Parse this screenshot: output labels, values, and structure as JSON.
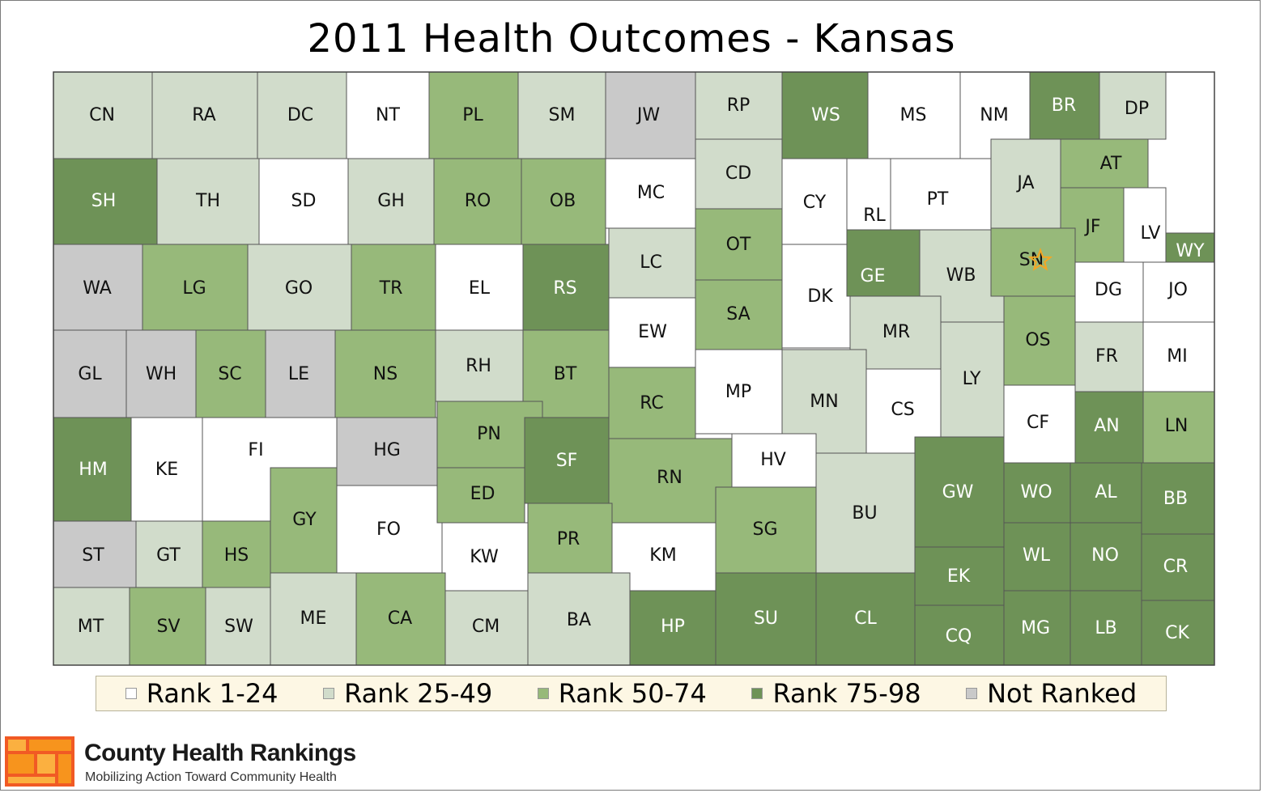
{
  "title": "2011 Health Outcomes - Kansas",
  "legend": [
    {
      "label": "Rank 1-24",
      "color": "#ffffff"
    },
    {
      "label": "Rank 25-49",
      "color": "#d1dccb"
    },
    {
      "label": "Rank 50-74",
      "color": "#97b97a"
    },
    {
      "label": "Rank 75-98",
      "color": "#6e9257"
    },
    {
      "label": "Not Ranked",
      "color": "#c9c9c9"
    }
  ],
  "rank_colors": {
    "r1": "#ffffff",
    "r2": "#d1dccb",
    "r3": "#97b97a",
    "r4": "#6e9257",
    "nr": "#c9c9c9"
  },
  "counties": [
    {
      "abbr": "CN",
      "rank_group": "r2"
    },
    {
      "abbr": "RA",
      "rank_group": "r2"
    },
    {
      "abbr": "DC",
      "rank_group": "r2"
    },
    {
      "abbr": "NT",
      "rank_group": "r1"
    },
    {
      "abbr": "PL",
      "rank_group": "r3"
    },
    {
      "abbr": "SM",
      "rank_group": "r2"
    },
    {
      "abbr": "JW",
      "rank_group": "nr"
    },
    {
      "abbr": "RP",
      "rank_group": "r2"
    },
    {
      "abbr": "WS",
      "rank_group": "r4"
    },
    {
      "abbr": "MS",
      "rank_group": "r1"
    },
    {
      "abbr": "NM",
      "rank_group": "r1"
    },
    {
      "abbr": "BR",
      "rank_group": "r4"
    },
    {
      "abbr": "DP",
      "rank_group": "r2"
    },
    {
      "abbr": "SH",
      "rank_group": "r4"
    },
    {
      "abbr": "TH",
      "rank_group": "r2"
    },
    {
      "abbr": "SD",
      "rank_group": "r1"
    },
    {
      "abbr": "GH",
      "rank_group": "r2"
    },
    {
      "abbr": "RO",
      "rank_group": "r3"
    },
    {
      "abbr": "OB",
      "rank_group": "r3"
    },
    {
      "abbr": "MC",
      "rank_group": "r1"
    },
    {
      "abbr": "CD",
      "rank_group": "r2"
    },
    {
      "abbr": "CY",
      "rank_group": "r1"
    },
    {
      "abbr": "RL",
      "rank_group": "r1"
    },
    {
      "abbr": "PT",
      "rank_group": "r1"
    },
    {
      "abbr": "JA",
      "rank_group": "r2"
    },
    {
      "abbr": "AT",
      "rank_group": "r3"
    },
    {
      "abbr": "JF",
      "rank_group": "r3"
    },
    {
      "abbr": "LV",
      "rank_group": "r1"
    },
    {
      "abbr": "WY",
      "rank_group": "r4"
    },
    {
      "abbr": "WA",
      "rank_group": "nr"
    },
    {
      "abbr": "LG",
      "rank_group": "r3"
    },
    {
      "abbr": "GO",
      "rank_group": "r2"
    },
    {
      "abbr": "TR",
      "rank_group": "r3"
    },
    {
      "abbr": "EL",
      "rank_group": "r1"
    },
    {
      "abbr": "RS",
      "rank_group": "r4"
    },
    {
      "abbr": "LC",
      "rank_group": "r2"
    },
    {
      "abbr": "OT",
      "rank_group": "r3"
    },
    {
      "abbr": "DK",
      "rank_group": "r1"
    },
    {
      "abbr": "GE",
      "rank_group": "r4"
    },
    {
      "abbr": "WB",
      "rank_group": "r2"
    },
    {
      "abbr": "SN",
      "rank_group": "r3"
    },
    {
      "abbr": "DG",
      "rank_group": "r1"
    },
    {
      "abbr": "JO",
      "rank_group": "r1"
    },
    {
      "abbr": "GL",
      "rank_group": "nr"
    },
    {
      "abbr": "WH",
      "rank_group": "nr"
    },
    {
      "abbr": "SC",
      "rank_group": "r3"
    },
    {
      "abbr": "LE",
      "rank_group": "nr"
    },
    {
      "abbr": "NS",
      "rank_group": "r3"
    },
    {
      "abbr": "RH",
      "rank_group": "r2"
    },
    {
      "abbr": "BT",
      "rank_group": "r3"
    },
    {
      "abbr": "EW",
      "rank_group": "r1"
    },
    {
      "abbr": "SA",
      "rank_group": "r3"
    },
    {
      "abbr": "MR",
      "rank_group": "r2"
    },
    {
      "abbr": "OS",
      "rank_group": "r3"
    },
    {
      "abbr": "FR",
      "rank_group": "r2"
    },
    {
      "abbr": "MI",
      "rank_group": "r1"
    },
    {
      "abbr": "HM",
      "rank_group": "r4"
    },
    {
      "abbr": "KE",
      "rank_group": "r1"
    },
    {
      "abbr": "FI",
      "rank_group": "r1"
    },
    {
      "abbr": "HG",
      "rank_group": "nr"
    },
    {
      "abbr": "PN",
      "rank_group": "r3"
    },
    {
      "abbr": "SF",
      "rank_group": "r4"
    },
    {
      "abbr": "RC",
      "rank_group": "r3"
    },
    {
      "abbr": "MP",
      "rank_group": "r1"
    },
    {
      "abbr": "MN",
      "rank_group": "r2"
    },
    {
      "abbr": "CS",
      "rank_group": "r1"
    },
    {
      "abbr": "LY",
      "rank_group": "r2"
    },
    {
      "abbr": "CF",
      "rank_group": "r1"
    },
    {
      "abbr": "AN",
      "rank_group": "r4"
    },
    {
      "abbr": "LN",
      "rank_group": "r3"
    },
    {
      "abbr": "GY",
      "rank_group": "r3"
    },
    {
      "abbr": "FO",
      "rank_group": "r1"
    },
    {
      "abbr": "ED",
      "rank_group": "r3"
    },
    {
      "abbr": "RN",
      "rank_group": "r3"
    },
    {
      "abbr": "HV",
      "rank_group": "r1"
    },
    {
      "abbr": "BU",
      "rank_group": "r2"
    },
    {
      "abbr": "GW",
      "rank_group": "r4"
    },
    {
      "abbr": "WO",
      "rank_group": "r4"
    },
    {
      "abbr": "AL",
      "rank_group": "r4"
    },
    {
      "abbr": "BB",
      "rank_group": "r4"
    },
    {
      "abbr": "ST",
      "rank_group": "nr"
    },
    {
      "abbr": "GT",
      "rank_group": "r2"
    },
    {
      "abbr": "HS",
      "rank_group": "r3"
    },
    {
      "abbr": "KW",
      "rank_group": "r1"
    },
    {
      "abbr": "PR",
      "rank_group": "r3"
    },
    {
      "abbr": "KM",
      "rank_group": "r1"
    },
    {
      "abbr": "SG",
      "rank_group": "r3"
    },
    {
      "abbr": "EK",
      "rank_group": "r4"
    },
    {
      "abbr": "WL",
      "rank_group": "r4"
    },
    {
      "abbr": "NO",
      "rank_group": "r4"
    },
    {
      "abbr": "CR",
      "rank_group": "r4"
    },
    {
      "abbr": "MT",
      "rank_group": "r2"
    },
    {
      "abbr": "SV",
      "rank_group": "r3"
    },
    {
      "abbr": "SW",
      "rank_group": "r2"
    },
    {
      "abbr": "ME",
      "rank_group": "r2"
    },
    {
      "abbr": "CA",
      "rank_group": "r3"
    },
    {
      "abbr": "CM",
      "rank_group": "r2"
    },
    {
      "abbr": "BA",
      "rank_group": "r2"
    },
    {
      "abbr": "HP",
      "rank_group": "r4"
    },
    {
      "abbr": "SU",
      "rank_group": "r4"
    },
    {
      "abbr": "CL",
      "rank_group": "r4"
    },
    {
      "abbr": "CQ",
      "rank_group": "r4"
    },
    {
      "abbr": "MG",
      "rank_group": "r4"
    },
    {
      "abbr": "LB",
      "rank_group": "r4"
    },
    {
      "abbr": "CK",
      "rank_group": "r4"
    }
  ],
  "capital_marker": {
    "county": "SN",
    "icon": "star-icon",
    "color": "#f5a623"
  },
  "brand": {
    "name": "County Health Rankings",
    "tagline": "Mobilizing Action Toward Community Health",
    "logo_colors": [
      "#f7941d",
      "#f15a24",
      "#fbb040"
    ]
  }
}
